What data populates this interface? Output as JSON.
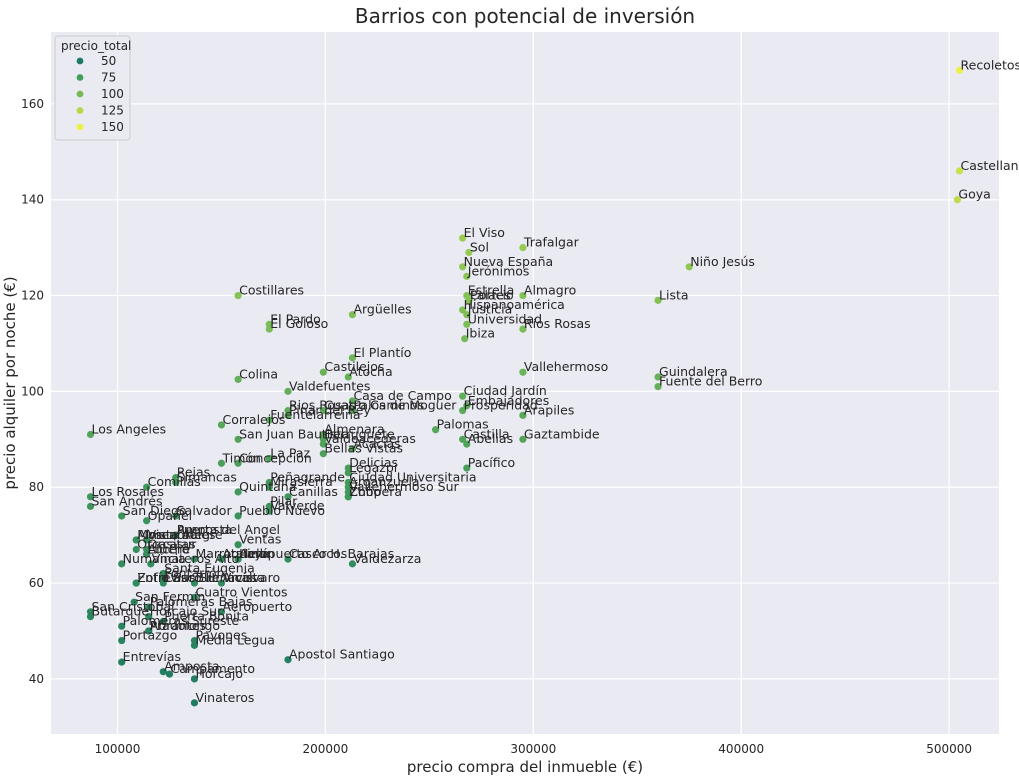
{
  "chart_data": {
    "type": "scatter",
    "title": "Barrios con potencial de inversión",
    "xlabel": "precio compra del inmueble (€)",
    "ylabel": "precio alquiler por noche (€)",
    "xlim": [
      68000,
      524000
    ],
    "ylim": [
      28.5,
      175
    ],
    "x_ticks": [
      100000,
      200000,
      300000,
      400000,
      500000
    ],
    "y_ticks": [
      40,
      60,
      80,
      100,
      120,
      140,
      160
    ],
    "grid": true,
    "hue": "precio_total",
    "colormap": "viridis-upper",
    "legend": {
      "title": "precio_total",
      "position": "top-left",
      "entries": [
        {
          "label": "50",
          "color": "#1e7a63"
        },
        {
          "label": "75",
          "color": "#43a05a"
        },
        {
          "label": "100",
          "color": "#77bb58"
        },
        {
          "label": "125",
          "color": "#b5d84a"
        },
        {
          "label": "150",
          "color": "#eef04a"
        }
      ]
    },
    "points": [
      {
        "label": "Recoletos",
        "x": 505000,
        "y": 167,
        "price_total": 168
      },
      {
        "label": "Castellana",
        "x": 505000,
        "y": 146,
        "price_total": 150
      },
      {
        "label": "Goya",
        "x": 504000,
        "y": 140,
        "price_total": 144
      },
      {
        "label": "El Viso",
        "x": 266000,
        "y": 132,
        "price_total": 125
      },
      {
        "label": "Trafalgar",
        "x": 295000,
        "y": 130,
        "price_total": 123
      },
      {
        "label": "Sol",
        "x": 269000,
        "y": 129,
        "price_total": 122
      },
      {
        "label": "Nueva España",
        "x": 266000,
        "y": 126,
        "price_total": 119
      },
      {
        "label": "Niño Jesús",
        "x": 375000,
        "y": 126,
        "price_total": 119
      },
      {
        "label": "Jerónimos",
        "x": 268000,
        "y": 124,
        "price_total": 117
      },
      {
        "label": "Costillares",
        "x": 158000,
        "y": 120,
        "price_total": 113
      },
      {
        "label": "Estrella",
        "x": 268000,
        "y": 120,
        "price_total": 113
      },
      {
        "label": "Almagro",
        "x": 295000,
        "y": 120,
        "price_total": 113
      },
      {
        "label": "Palacio",
        "x": 269000,
        "y": 119,
        "price_total": 112
      },
      {
        "label": "Cortes",
        "x": 269000,
        "y": 119,
        "price_total": 112
      },
      {
        "label": "Lista",
        "x": 360000,
        "y": 119,
        "price_total": 112
      },
      {
        "label": "Hispanoamérica",
        "x": 266000,
        "y": 117,
        "price_total": 110
      },
      {
        "label": "Argüelles",
        "x": 213000,
        "y": 116,
        "price_total": 109
      },
      {
        "label": "Justicia",
        "x": 268000,
        "y": 116,
        "price_total": 109
      },
      {
        "label": "El Pardo",
        "x": 173000,
        "y": 114,
        "price_total": 107
      },
      {
        "label": "Universidad",
        "x": 268000,
        "y": 114,
        "price_total": 107
      },
      {
        "label": "El Goloso",
        "x": 173000,
        "y": 113,
        "price_total": 106
      },
      {
        "label": "Ríos Rosas",
        "x": 295000,
        "y": 113,
        "price_total": 106
      },
      {
        "label": "Ibiza",
        "x": 267000,
        "y": 111,
        "price_total": 104
      },
      {
        "label": "El Plantío",
        "x": 213000,
        "y": 107,
        "price_total": 100
      },
      {
        "label": "Castilejos",
        "x": 199000,
        "y": 104,
        "price_total": 97
      },
      {
        "label": "Vallehermoso",
        "x": 295000,
        "y": 104,
        "price_total": 97
      },
      {
        "label": "Atocha",
        "x": 211000,
        "y": 103,
        "price_total": 96
      },
      {
        "label": "Colina",
        "x": 158000,
        "y": 102.5,
        "price_total": 95
      },
      {
        "label": "Guindalera",
        "x": 360000,
        "y": 103,
        "price_total": 96
      },
      {
        "label": "Fuente del Berro",
        "x": 360000,
        "y": 101,
        "price_total": 94
      },
      {
        "label": "Valdefuentes",
        "x": 182000,
        "y": 100,
        "price_total": 93
      },
      {
        "label": "Ciudad Jardín",
        "x": 266000,
        "y": 99,
        "price_total": 92
      },
      {
        "label": "Casa de Campo",
        "x": 213000,
        "y": 98,
        "price_total": 91
      },
      {
        "label": "Embajadores",
        "x": 268000,
        "y": 97,
        "price_total": 90
      },
      {
        "label": "Rios Rosas",
        "x": 182000,
        "y": 96,
        "price_total": 89
      },
      {
        "label": "Cuatro Caminos",
        "x": 199000,
        "y": 96,
        "price_total": 89
      },
      {
        "label": "Palos de Moguer",
        "x": 213000,
        "y": 96,
        "price_total": 89
      },
      {
        "label": "Prosperidad",
        "x": 266000,
        "y": 96,
        "price_total": 89
      },
      {
        "label": "Pinar del Rey",
        "x": 182000,
        "y": 95,
        "price_total": 88
      },
      {
        "label": "Arapiles",
        "x": 295000,
        "y": 95,
        "price_total": 88
      },
      {
        "label": "Fuentelarreina",
        "x": 173000,
        "y": 94,
        "price_total": 87
      },
      {
        "label": "Corralejos",
        "x": 150000,
        "y": 93,
        "price_total": 86
      },
      {
        "label": "Palomas",
        "x": 253000,
        "y": 92,
        "price_total": 85
      },
      {
        "label": "Almenara",
        "x": 199000,
        "y": 91,
        "price_total": 84
      },
      {
        "label": "Los Angeles",
        "x": 87000,
        "y": 91,
        "price_total": 84
      },
      {
        "label": "San Juan Bautista",
        "x": 158000,
        "y": 90,
        "price_total": 83
      },
      {
        "label": "Berruguete",
        "x": 199000,
        "y": 90,
        "price_total": 83
      },
      {
        "label": "Castilla",
        "x": 266000,
        "y": 90,
        "price_total": 83
      },
      {
        "label": "Gaztambide",
        "x": 295000,
        "y": 90,
        "price_total": 83
      },
      {
        "label": "Valdeacederas",
        "x": 199000,
        "y": 89,
        "price_total": 82
      },
      {
        "label": "Abelias",
        "x": 268000,
        "y": 89,
        "price_total": 82
      },
      {
        "label": "Acacias",
        "x": 213000,
        "y": 88,
        "price_total": 81
      },
      {
        "label": "Bellas Vistas",
        "x": 199000,
        "y": 87,
        "price_total": 80
      },
      {
        "label": "La Paz",
        "x": 173000,
        "y": 86,
        "price_total": 79
      },
      {
        "label": "Timón",
        "x": 150000,
        "y": 85,
        "price_total": 78
      },
      {
        "label": "Concepción",
        "x": 158000,
        "y": 85,
        "price_total": 78
      },
      {
        "label": "Delicias",
        "x": 211000,
        "y": 84,
        "price_total": 77
      },
      {
        "label": "Pacífico",
        "x": 268000,
        "y": 84,
        "price_total": 77
      },
      {
        "label": "Legazpi",
        "x": 211000,
        "y": 83,
        "price_total": 76
      },
      {
        "label": "Rejas",
        "x": 128000,
        "y": 82,
        "price_total": 75
      },
      {
        "label": "Peñagrande",
        "x": 173000,
        "y": 81,
        "price_total": 74
      },
      {
        "label": "Ciudad Universitaria",
        "x": 211000,
        "y": 81,
        "price_total": 74
      },
      {
        "label": "Simancas",
        "x": 128000,
        "y": 81,
        "price_total": 74
      },
      {
        "label": "Arganzuela",
        "x": 211000,
        "y": 80,
        "price_total": 73
      },
      {
        "label": "Mirasierra",
        "x": 173000,
        "y": 80,
        "price_total": 73
      },
      {
        "label": "Comillas",
        "x": 114000,
        "y": 80,
        "price_total": 73
      },
      {
        "label": "Vallehermoso Sur",
        "x": 211000,
        "y": 79,
        "price_total": 72
      },
      {
        "label": "Quintana",
        "x": 158000,
        "y": 79,
        "price_total": 72
      },
      {
        "label": "Zofio",
        "x": 211000,
        "y": 78,
        "price_total": 71
      },
      {
        "label": "Chopera",
        "x": 211000,
        "y": 78,
        "price_total": 71
      },
      {
        "label": "Canillas",
        "x": 182000,
        "y": 78,
        "price_total": 71
      },
      {
        "label": "Los Rosales",
        "x": 87000,
        "y": 78,
        "price_total": 71
      },
      {
        "label": "San Andrés",
        "x": 87000,
        "y": 76,
        "price_total": 69
      },
      {
        "label": "Pilar",
        "x": 173000,
        "y": 76,
        "price_total": 69
      },
      {
        "label": "Valverde",
        "x": 173000,
        "y": 75,
        "price_total": 68
      },
      {
        "label": "San Diego",
        "x": 102000,
        "y": 74,
        "price_total": 67
      },
      {
        "label": "Salvador",
        "x": 128000,
        "y": 74,
        "price_total": 67
      },
      {
        "label": "Pueblo Nuevo",
        "x": 158000,
        "y": 74,
        "price_total": 67
      },
      {
        "label": "Opañel",
        "x": 114000,
        "y": 73,
        "price_total": 66
      },
      {
        "label": "Puerta del Angel",
        "x": 128000,
        "y": 70,
        "price_total": 63
      },
      {
        "label": "Amposta",
        "x": 128000,
        "y": 70,
        "price_total": 63
      },
      {
        "label": "Moscardó",
        "x": 109000,
        "y": 69,
        "price_total": 62
      },
      {
        "label": "Almendrales",
        "x": 109000,
        "y": 69,
        "price_total": 62
      },
      {
        "label": "Vista Alegre",
        "x": 114000,
        "y": 69,
        "price_total": 62
      },
      {
        "label": "Ventas",
        "x": 158000,
        "y": 68,
        "price_total": 61
      },
      {
        "label": "Orcasitas",
        "x": 109000,
        "y": 67,
        "price_total": 60
      },
      {
        "label": "Orcasur",
        "x": 114000,
        "y": 67,
        "price_total": 60
      },
      {
        "label": "Lucero",
        "x": 114000,
        "y": 66,
        "price_total": 59
      },
      {
        "label": "Aluche",
        "x": 114000,
        "y": 66,
        "price_total": 59
      },
      {
        "label": "Marroquina",
        "x": 137000,
        "y": 65,
        "price_total": 58
      },
      {
        "label": "Atalaya",
        "x": 150000,
        "y": 65,
        "price_total": 58
      },
      {
        "label": "Hellín",
        "x": 158000,
        "y": 65,
        "price_total": 58
      },
      {
        "label": "Aeropuerto Arcos",
        "x": 158000,
        "y": 65,
        "price_total": 58
      },
      {
        "label": "Casco H. Barajas",
        "x": 182000,
        "y": 65,
        "price_total": 58
      },
      {
        "label": "Numancia",
        "x": 102000,
        "y": 64,
        "price_total": 57
      },
      {
        "label": "Valdezarza",
        "x": 213000,
        "y": 64,
        "price_total": 57
      },
      {
        "label": "Vinateros Alto",
        "x": 116000,
        "y": 64,
        "price_total": 57
      },
      {
        "label": "Santa Eugenia",
        "x": 122000,
        "y": 62,
        "price_total": 55
      },
      {
        "label": "Fontarrón",
        "x": 122000,
        "y": 61,
        "price_total": 54
      },
      {
        "label": "Zofío Sur",
        "x": 109000,
        "y": 60,
        "price_total": 53
      },
      {
        "label": "Entrevías Sur",
        "x": 109000,
        "y": 60,
        "price_total": 53
      },
      {
        "label": "Casco H. Vicálvaro",
        "x": 122000,
        "y": 60,
        "price_total": 53
      },
      {
        "label": "Buenavista",
        "x": 137000,
        "y": 60,
        "price_total": 53
      },
      {
        "label": "Arcos",
        "x": 150000,
        "y": 60,
        "price_total": 53
      },
      {
        "label": "San Fermín",
        "x": 108000,
        "y": 56,
        "price_total": 49
      },
      {
        "label": "Cuatro Vientos",
        "x": 137000,
        "y": 57,
        "price_total": 50
      },
      {
        "label": "Palomeras Bajas",
        "x": 115000,
        "y": 55,
        "price_total": 48
      },
      {
        "label": "San Cristóbal",
        "x": 87000,
        "y": 54,
        "price_total": 47
      },
      {
        "label": "Aeropuerto",
        "x": 150000,
        "y": 54,
        "price_total": 47
      },
      {
        "label": "Butarque",
        "x": 87000,
        "y": 53,
        "price_total": 46
      },
      {
        "label": "Horcajo Sur",
        "x": 115000,
        "y": 53,
        "price_total": 46
      },
      {
        "label": "Puerta Bonita",
        "x": 122000,
        "y": 52,
        "price_total": 45
      },
      {
        "label": "Palomeras Sureste",
        "x": 102000,
        "y": 51,
        "price_total": 44
      },
      {
        "label": "Pradolongo",
        "x": 115000,
        "y": 50,
        "price_total": 43
      },
      {
        "label": "Abrantes",
        "x": 115000,
        "y": 50,
        "price_total": 43
      },
      {
        "label": "Portazgo",
        "x": 102000,
        "y": 48,
        "price_total": 41
      },
      {
        "label": "Pavones",
        "x": 137000,
        "y": 48,
        "price_total": 41
      },
      {
        "label": "Media Legua",
        "x": 137000,
        "y": 47,
        "price_total": 40
      },
      {
        "label": "Apostol Santiago",
        "x": 182000,
        "y": 44,
        "price_total": 37
      },
      {
        "label": "Entrevías",
        "x": 102000,
        "y": 43.5,
        "price_total": 36
      },
      {
        "label": "Amposta",
        "x": 122000,
        "y": 41.5,
        "price_total": 35
      },
      {
        "label": "Campamento",
        "x": 125000,
        "y": 41,
        "price_total": 34
      },
      {
        "label": "Horcajo",
        "x": 137000,
        "y": 40,
        "price_total": 33
      },
      {
        "label": "Vinateros",
        "x": 137000,
        "y": 35,
        "price_total": 28
      }
    ]
  }
}
